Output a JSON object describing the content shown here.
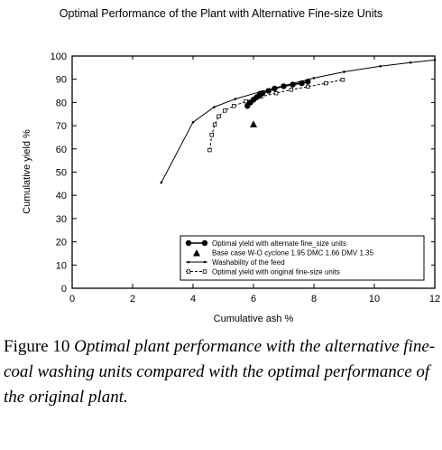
{
  "chart_data": {
    "type": "line",
    "title": "Optimal Performance of the Plant with Alternative Fine-size Units",
    "xlabel": "Cumulative ash %",
    "ylabel": "Cumulative yield %",
    "xlim": [
      0,
      12
    ],
    "ylim": [
      0,
      100
    ],
    "xticks": [
      "0",
      "2",
      "4",
      "6",
      "8",
      "10",
      "12"
    ],
    "yticks": [
      "0",
      "10",
      "20",
      "30",
      "40",
      "50",
      "60",
      "70",
      "80",
      "90",
      "100"
    ],
    "grid": false,
    "legend_position": "bottom-right",
    "series": [
      {
        "name": "Optimal yield with alternate fine_size units",
        "style": "solid-filled-circle",
        "x": [
          5.8,
          5.9,
          6.0,
          6.1,
          6.2,
          6.3,
          6.5,
          6.7,
          7.0,
          7.3,
          7.6,
          7.8
        ],
        "y": [
          78.5,
          80,
          81.2,
          82.2,
          83.2,
          84,
          85,
          86,
          87,
          87.7,
          88.3,
          89
        ]
      },
      {
        "name": "Base case W-O cyclone 1.95 DMC 1.66 DMV 1.35",
        "style": "triangle",
        "x": [
          6.0
        ],
        "y": [
          70.5
        ]
      },
      {
        "name": "Washability of the feed",
        "style": "solid-small-dot",
        "x": [
          2.95,
          4.0,
          4.7,
          5.4,
          6.2,
          7.0,
          8.0,
          9.0,
          10.2,
          11.2,
          12.0
        ],
        "y": [
          45.5,
          71.5,
          78,
          81.5,
          84.5,
          87.2,
          90.5,
          93.2,
          95.6,
          97.2,
          98.3
        ]
      },
      {
        "name": "Optimal yield with original fine-size units",
        "style": "dashed-open-square",
        "x": [
          4.55,
          4.62,
          4.72,
          4.85,
          5.05,
          5.35,
          5.75,
          6.25,
          6.75,
          7.25,
          7.8,
          8.4,
          8.95
        ],
        "y": [
          59.5,
          66,
          70.5,
          74,
          76.5,
          78.5,
          80.5,
          82.5,
          84,
          85.5,
          86.8,
          88.3,
          89.8
        ]
      }
    ]
  },
  "caption": {
    "figure_label": "Figure 10",
    "description": "Optimal plant performance with the alternative fine-coal washing units compared with the optimal performance of the original plant."
  }
}
